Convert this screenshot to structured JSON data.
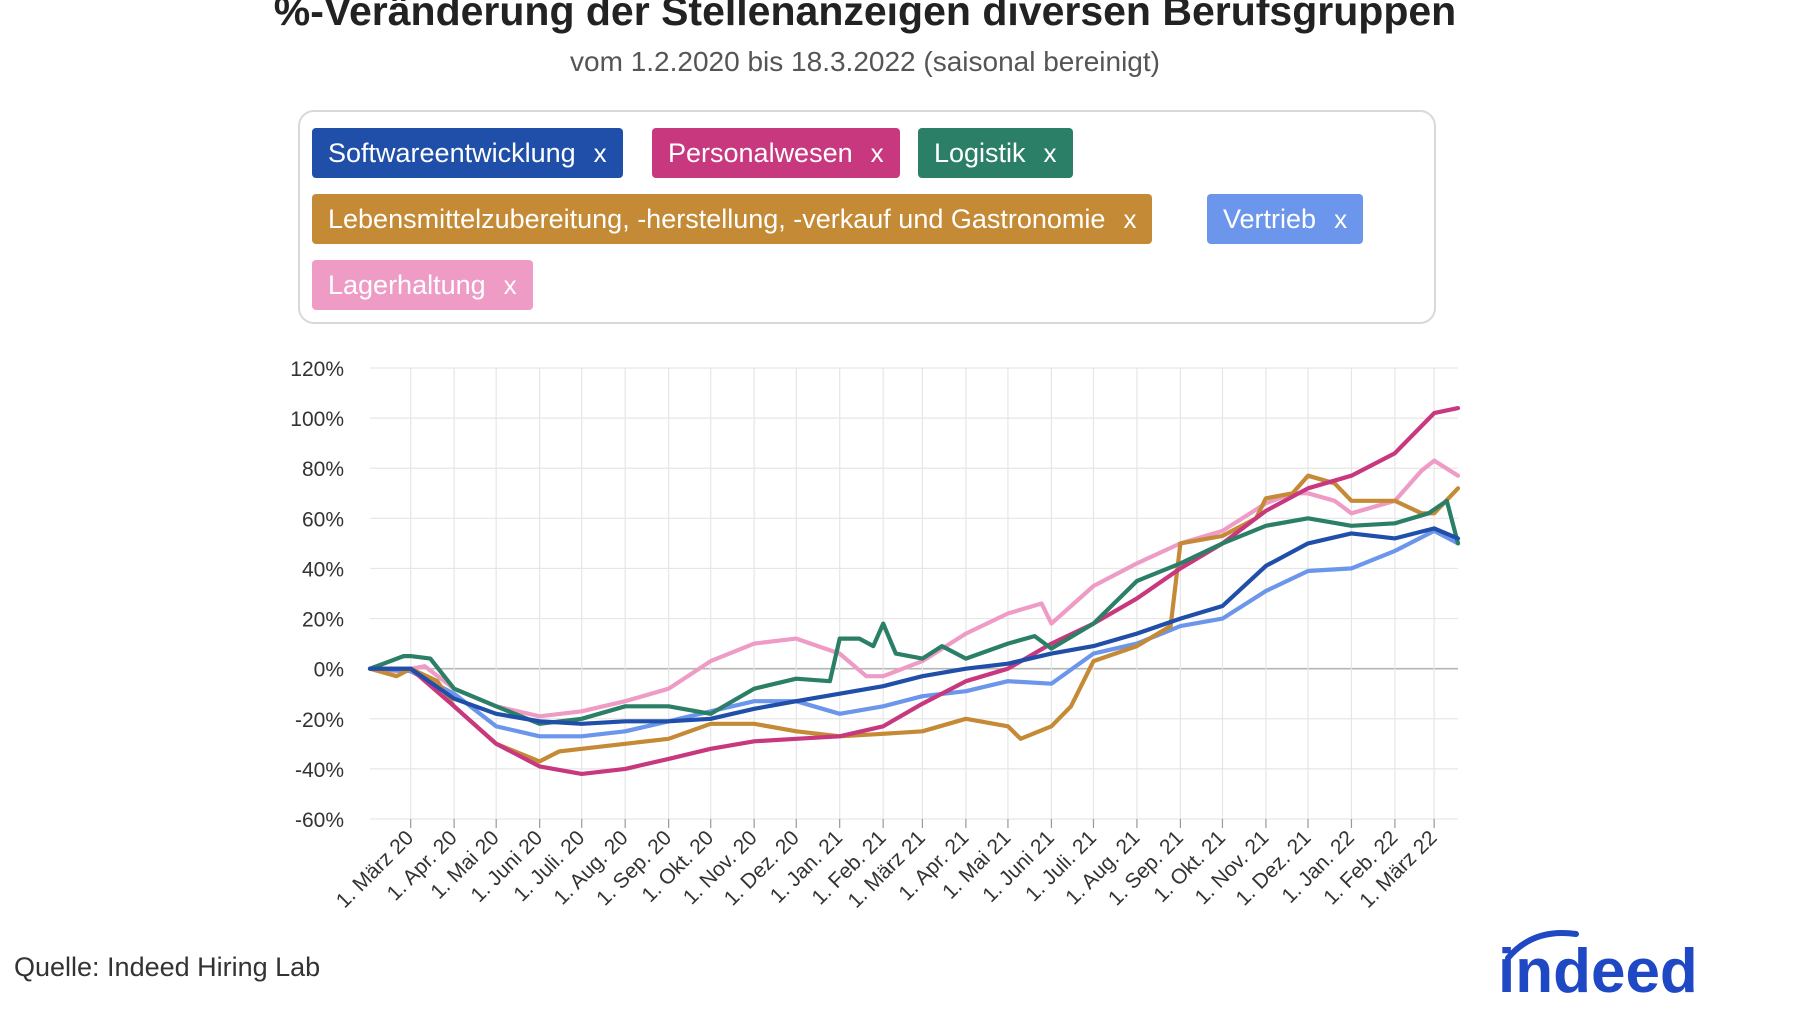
{
  "title": "%-Veränderung der Stellenanzeigen diversen Berufsgruppen",
  "subtitle": "vom 1.2.2020 bis 18.3.2022 (saisonal bereinigt)",
  "source": "Quelle: Indeed Hiring Lab",
  "logo_text": "indeed",
  "legend_remove_symbol": "x",
  "colors": {
    "Softwareentwicklung": "#1f4fa8",
    "Personalwesen": "#c8387f",
    "Logistik": "#2b7f67",
    "Lebensmittelzubereitung, -herstellung, -verkauf und Gastronomie": "#c48a35",
    "Vertrieb": "#6b96eb",
    "Lagerhaltung": "#ee9cc6",
    "logo": "#1f48c4",
    "grid": "#e6e6e6",
    "zero_line": "#b5b5b5"
  },
  "chart_data": {
    "type": "line",
    "x_start": "2020-02-01",
    "x_end": "2022-03-18",
    "ylim": [
      -60,
      120
    ],
    "yticks": [
      -60,
      -40,
      -20,
      0,
      20,
      40,
      60,
      80,
      100,
      120
    ],
    "y_tick_labels": [
      "-60%",
      "-40%",
      "-20%",
      "0%",
      "20%",
      "40%",
      "60%",
      "80%",
      "100%",
      "120%"
    ],
    "x_tick_dates": [
      "2020-03-01",
      "2020-04-01",
      "2020-05-01",
      "2020-06-01",
      "2020-07-01",
      "2020-08-01",
      "2020-09-01",
      "2020-10-01",
      "2020-11-01",
      "2020-12-01",
      "2021-01-01",
      "2021-02-01",
      "2021-03-01",
      "2021-04-01",
      "2021-05-01",
      "2021-06-01",
      "2021-07-01",
      "2021-08-01",
      "2021-09-01",
      "2021-10-01",
      "2021-11-01",
      "2021-12-01",
      "2022-01-01",
      "2022-02-01",
      "2022-03-01"
    ],
    "x_tick_labels": [
      "1. März 20",
      "1. Apr. 20",
      "1. Mai 20",
      "1. Juni 20",
      "1. Juli. 20",
      "1. Aug. 20",
      "1. Sep. 20",
      "1. Okt. 20",
      "1. Nov. 20",
      "1. Dez. 20",
      "1. Jan. 21",
      "1. Feb. 21",
      "1. März 21",
      "1. Apr. 21",
      "1. Mai 21",
      "1. Juni 21",
      "1. Juli. 21",
      "1. Aug. 21",
      "1. Sep. 21",
      "1. Okt. 21",
      "1. Nov. 21",
      "1. Dez. 21",
      "1. Jan. 22",
      "1. Feb. 22",
      "1. März 22"
    ],
    "grid": true,
    "series": [
      {
        "name": "Lagerhaltung",
        "x": [
          "2020-02-01",
          "2020-02-21",
          "2020-03-11",
          "2020-04-01",
          "2020-05-01",
          "2020-06-01",
          "2020-07-01",
          "2020-08-01",
          "2020-09-01",
          "2020-10-01",
          "2020-11-01",
          "2020-12-01",
          "2021-01-01",
          "2021-01-20",
          "2021-02-01",
          "2021-03-01",
          "2021-04-01",
          "2021-05-01",
          "2021-05-25",
          "2021-06-01",
          "2021-07-01",
          "2021-08-01",
          "2021-09-01",
          "2021-10-01",
          "2021-11-01",
          "2021-11-20",
          "2021-12-01",
          "2021-12-20",
          "2022-01-01",
          "2022-02-01",
          "2022-02-20",
          "2022-03-01",
          "2022-03-18"
        ],
        "values": [
          0,
          -1,
          1,
          -8,
          -15,
          -19,
          -17,
          -13,
          -8,
          3,
          10,
          12,
          6,
          -3,
          -3,
          3,
          14,
          22,
          26,
          18,
          33,
          42,
          50,
          55,
          66,
          70,
          70,
          67,
          62,
          67,
          79,
          83,
          77
        ]
      },
      {
        "name": "Vertrieb",
        "x": [
          "2020-02-01",
          "2020-03-01",
          "2020-04-01",
          "2020-05-01",
          "2020-06-01",
          "2020-07-01",
          "2020-08-01",
          "2020-09-01",
          "2020-10-01",
          "2020-11-01",
          "2020-12-01",
          "2021-01-01",
          "2021-02-01",
          "2021-03-01",
          "2021-04-01",
          "2021-05-01",
          "2021-06-01",
          "2021-07-01",
          "2021-08-01",
          "2021-09-01",
          "2021-10-01",
          "2021-11-01",
          "2021-12-01",
          "2022-01-01",
          "2022-02-01",
          "2022-03-01",
          "2022-03-18"
        ],
        "values": [
          0,
          -1,
          -10,
          -23,
          -27,
          -27,
          -25,
          -21,
          -17,
          -13,
          -13,
          -18,
          -15,
          -11,
          -9,
          -5,
          -6,
          6,
          10,
          17,
          20,
          31,
          39,
          40,
          47,
          55,
          50
        ]
      },
      {
        "name": "Lebensmittelzubereitung, -herstellung, -verkauf und Gastronomie",
        "x": [
          "2020-02-01",
          "2020-02-20",
          "2020-03-01",
          "2020-03-20",
          "2020-04-01",
          "2020-05-01",
          "2020-06-01",
          "2020-06-15",
          "2020-07-01",
          "2020-08-01",
          "2020-09-01",
          "2020-10-01",
          "2020-11-01",
          "2020-12-01",
          "2021-01-01",
          "2021-02-01",
          "2021-03-01",
          "2021-04-01",
          "2021-05-01",
          "2021-05-10",
          "2021-06-01",
          "2021-06-15",
          "2021-07-01",
          "2021-08-01",
          "2021-08-25",
          "2021-09-01",
          "2021-10-01",
          "2021-10-25",
          "2021-11-01",
          "2021-11-20",
          "2021-12-01",
          "2021-12-20",
          "2022-01-01",
          "2022-02-01",
          "2022-02-20",
          "2022-03-01",
          "2022-03-18"
        ],
        "values": [
          0,
          -3,
          0,
          -5,
          -15,
          -30,
          -37,
          -33,
          -32,
          -30,
          -28,
          -22,
          -22,
          -25,
          -27,
          -26,
          -25,
          -20,
          -23,
          -28,
          -23,
          -15,
          3,
          9,
          17,
          50,
          53,
          60,
          68,
          70,
          77,
          74,
          67,
          67,
          62,
          62,
          72
        ]
      },
      {
        "name": "Personalwesen",
        "x": [
          "2020-02-01",
          "2020-03-01",
          "2020-04-01",
          "2020-05-01",
          "2020-06-01",
          "2020-07-01",
          "2020-08-01",
          "2020-09-01",
          "2020-10-01",
          "2020-11-01",
          "2020-12-01",
          "2021-01-01",
          "2021-02-01",
          "2021-03-01",
          "2021-04-01",
          "2021-05-01",
          "2021-06-01",
          "2021-07-01",
          "2021-08-01",
          "2021-09-01",
          "2021-10-01",
          "2021-11-01",
          "2021-12-01",
          "2022-01-01",
          "2022-02-01",
          "2022-03-01",
          "2022-03-18"
        ],
        "values": [
          0,
          0,
          -15,
          -30,
          -39,
          -42,
          -40,
          -36,
          -32,
          -29,
          -28,
          -27,
          -23,
          -14,
          -5,
          0,
          10,
          18,
          28,
          40,
          50,
          63,
          72,
          77,
          86,
          102,
          104
        ]
      },
      {
        "name": "Logistik",
        "x": [
          "2020-02-01",
          "2020-02-25",
          "2020-03-01",
          "2020-03-15",
          "2020-04-01",
          "2020-05-01",
          "2020-06-01",
          "2020-07-01",
          "2020-08-01",
          "2020-09-01",
          "2020-10-01",
          "2020-11-01",
          "2020-12-01",
          "2020-12-25",
          "2021-01-01",
          "2021-01-15",
          "2021-01-25",
          "2021-02-01",
          "2021-02-10",
          "2021-03-01",
          "2021-03-15",
          "2021-04-01",
          "2021-05-01",
          "2021-05-20",
          "2021-06-01",
          "2021-07-01",
          "2021-08-01",
          "2021-09-01",
          "2021-10-01",
          "2021-11-01",
          "2021-12-01",
          "2022-01-01",
          "2022-02-01",
          "2022-02-25",
          "2022-03-10",
          "2022-03-18"
        ],
        "values": [
          0,
          5,
          5,
          4,
          -8,
          -15,
          -22,
          -20,
          -15,
          -15,
          -18,
          -8,
          -4,
          -5,
          12,
          12,
          9,
          18,
          6,
          4,
          9,
          4,
          10,
          13,
          8,
          18,
          35,
          42,
          50,
          57,
          60,
          57,
          58,
          62,
          67,
          50
        ]
      },
      {
        "name": "Softwareentwicklung",
        "x": [
          "2020-02-01",
          "2020-03-01",
          "2020-04-01",
          "2020-05-01",
          "2020-06-01",
          "2020-07-01",
          "2020-08-01",
          "2020-09-01",
          "2020-10-01",
          "2020-11-01",
          "2020-12-01",
          "2021-01-01",
          "2021-02-01",
          "2021-03-01",
          "2021-04-01",
          "2021-05-01",
          "2021-06-01",
          "2021-07-01",
          "2021-08-01",
          "2021-09-01",
          "2021-10-01",
          "2021-11-01",
          "2021-12-01",
          "2022-01-01",
          "2022-02-01",
          "2022-03-01",
          "2022-03-18"
        ],
        "values": [
          0,
          0,
          -12,
          -18,
          -21,
          -22,
          -21,
          -21,
          -20,
          -16,
          -13,
          -10,
          -7,
          -3,
          0,
          2,
          6,
          9,
          14,
          20,
          25,
          41,
          50,
          54,
          52,
          56,
          52
        ]
      }
    ]
  }
}
